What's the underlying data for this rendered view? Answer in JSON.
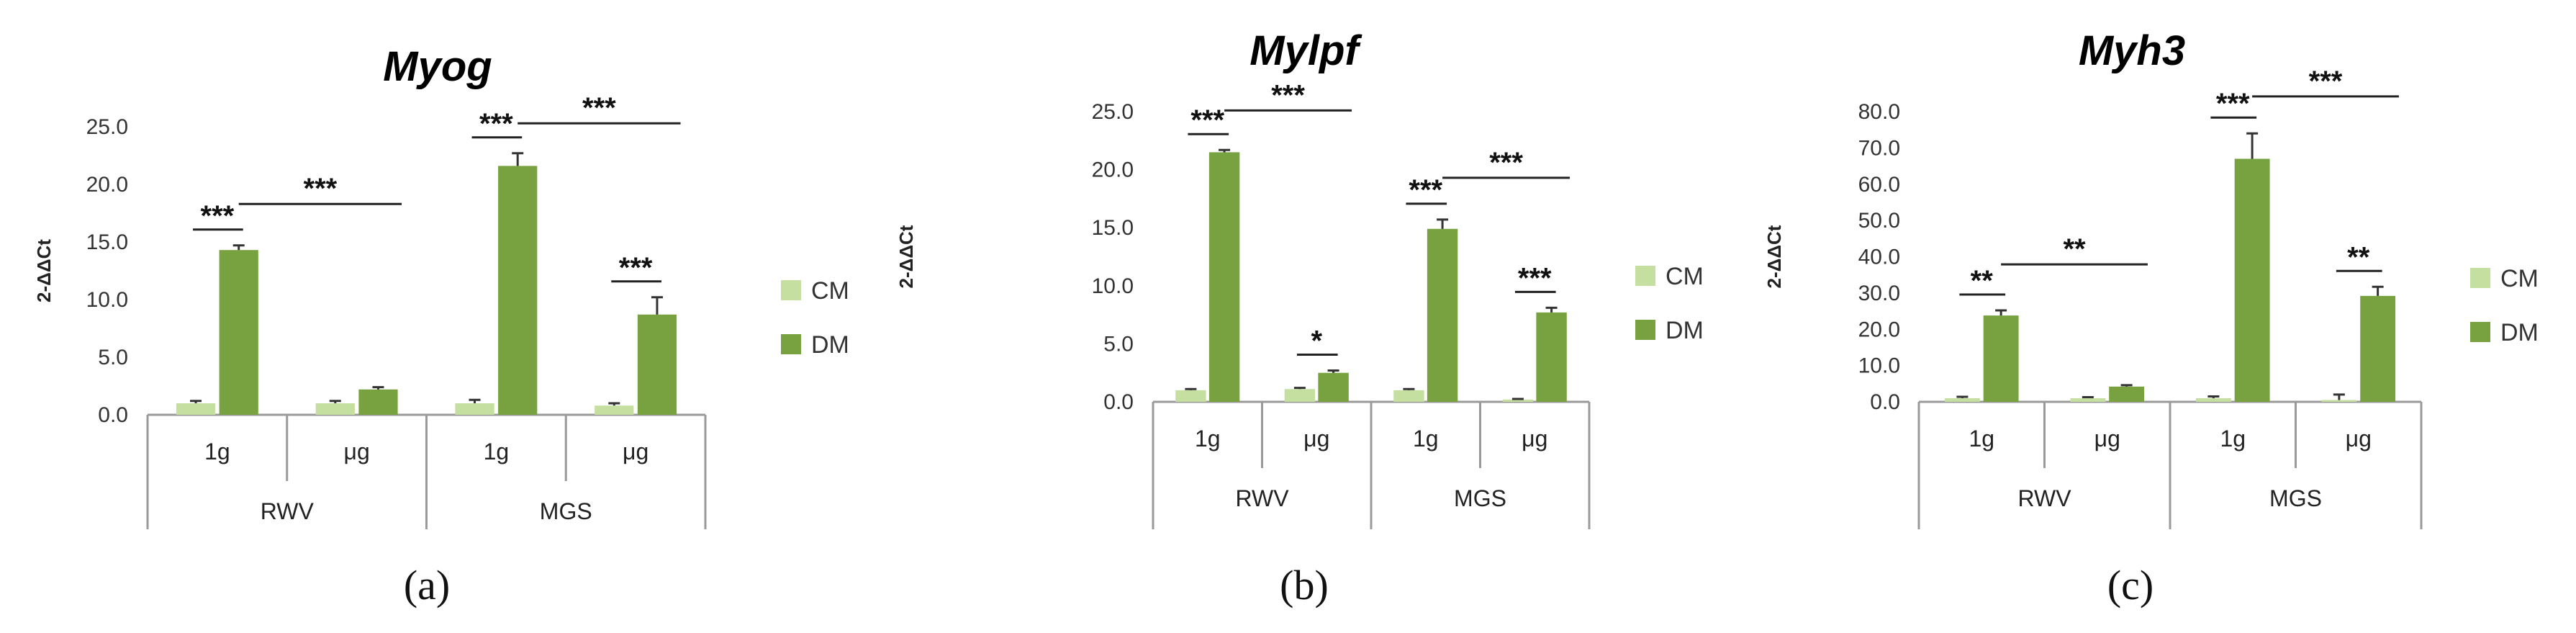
{
  "colors": {
    "cm": "#c5dfa0",
    "dm": "#78a23f",
    "axis": "#9a9a9a",
    "error": "#333333"
  },
  "chart_data": [
    {
      "type": "bar",
      "title": "Myog",
      "panel_label": "(a)",
      "ylabel": "2-ΔΔCt",
      "ylim": [
        0,
        25
      ],
      "yticks": [
        0,
        5,
        10,
        15,
        20,
        25
      ],
      "ytick_labels": [
        "0.0",
        "5.0",
        "10.0",
        "15.0",
        "20.0",
        "25.0"
      ],
      "categories": [
        "1g",
        "μg",
        "1g",
        "μg"
      ],
      "groups": [
        {
          "label": "RWV",
          "span": [
            0,
            1
          ]
        },
        {
          "label": "MGS",
          "span": [
            2,
            3
          ]
        }
      ],
      "series": [
        {
          "name": "CM",
          "values": [
            1.0,
            1.0,
            1.0,
            0.8
          ],
          "errors": [
            0.2,
            0.2,
            0.3,
            0.2
          ]
        },
        {
          "name": "DM",
          "values": [
            14.3,
            2.2,
            21.6,
            8.7
          ],
          "errors": [
            0.4,
            0.2,
            1.1,
            1.5
          ]
        }
      ],
      "annotations": [
        {
          "text": "***",
          "kind": "pair",
          "cat": 0
        },
        {
          "text": "***",
          "kind": "pair",
          "cat": 2
        },
        {
          "text": "***",
          "kind": "pair",
          "cat": 3
        },
        {
          "text": "***",
          "kind": "between",
          "from": 0,
          "to": 1,
          "level": 18.3
        },
        {
          "text": "***",
          "kind": "between",
          "from": 2,
          "to": 3,
          "level": 25.3
        }
      ],
      "legend": [
        "CM",
        "DM"
      ]
    },
    {
      "type": "bar",
      "title": "Mylpf",
      "panel_label": "(b)",
      "ylabel": "2-ΔΔCt",
      "ylim": [
        0,
        25
      ],
      "yticks": [
        0,
        5,
        10,
        15,
        20,
        25
      ],
      "ytick_labels": [
        "0.0",
        "5.0",
        "10.0",
        "15.0",
        "20.0",
        "25.0"
      ],
      "categories": [
        "1g",
        "μg",
        "1g",
        "μg"
      ],
      "groups": [
        {
          "label": "RWV",
          "span": [
            0,
            1
          ]
        },
        {
          "label": "MGS",
          "span": [
            2,
            3
          ]
        }
      ],
      "series": [
        {
          "name": "CM",
          "values": [
            1.0,
            1.1,
            1.0,
            0.2
          ],
          "errors": [
            0.1,
            0.1,
            0.1,
            0.05
          ]
        },
        {
          "name": "DM",
          "values": [
            21.5,
            2.5,
            14.9,
            7.7
          ],
          "errors": [
            0.2,
            0.2,
            0.8,
            0.4
          ]
        }
      ],
      "annotations": [
        {
          "text": "***",
          "kind": "pair",
          "cat": 0
        },
        {
          "text": "*",
          "kind": "pair",
          "cat": 1
        },
        {
          "text": "***",
          "kind": "pair",
          "cat": 2
        },
        {
          "text": "***",
          "kind": "pair",
          "cat": 3
        },
        {
          "text": "***",
          "kind": "between",
          "from": 0,
          "to": 1,
          "level": 25.1
        },
        {
          "text": "***",
          "kind": "between",
          "from": 2,
          "to": 3,
          "level": 19.3
        }
      ],
      "legend": [
        "CM",
        "DM"
      ]
    },
    {
      "type": "bar",
      "title": "Myh3",
      "panel_label": "(c)",
      "ylabel": "2-ΔΔCt",
      "ylim": [
        0,
        80
      ],
      "yticks": [
        0,
        10,
        20,
        30,
        40,
        50,
        60,
        70,
        80
      ],
      "ytick_labels": [
        "0.0",
        "10.0",
        "20.0",
        "30.0",
        "40.0",
        "50.0",
        "60.0",
        "70.0",
        "80.0"
      ],
      "categories": [
        "1g",
        "μg",
        "1g",
        "μg"
      ],
      "groups": [
        {
          "label": "RWV",
          "span": [
            0,
            1
          ]
        },
        {
          "label": "MGS",
          "span": [
            2,
            3
          ]
        }
      ],
      "series": [
        {
          "name": "CM",
          "values": [
            1.0,
            1.0,
            1.0,
            0.5
          ],
          "errors": [
            0.4,
            0.3,
            0.5,
            1.5
          ]
        },
        {
          "name": "DM",
          "values": [
            23.8,
            4.2,
            67.0,
            29.2
          ],
          "errors": [
            1.4,
            0.4,
            7.0,
            2.5
          ]
        }
      ],
      "annotations": [
        {
          "text": "**",
          "kind": "pair",
          "cat": 0
        },
        {
          "text": "***",
          "kind": "pair",
          "cat": 2
        },
        {
          "text": "**",
          "kind": "pair",
          "cat": 3
        },
        {
          "text": "**",
          "kind": "between",
          "from": 0,
          "to": 1,
          "level": 37.9
        },
        {
          "text": "***",
          "kind": "between",
          "from": 2,
          "to": 3,
          "level": 84.2
        }
      ],
      "legend": [
        "CM",
        "DM"
      ]
    }
  ]
}
